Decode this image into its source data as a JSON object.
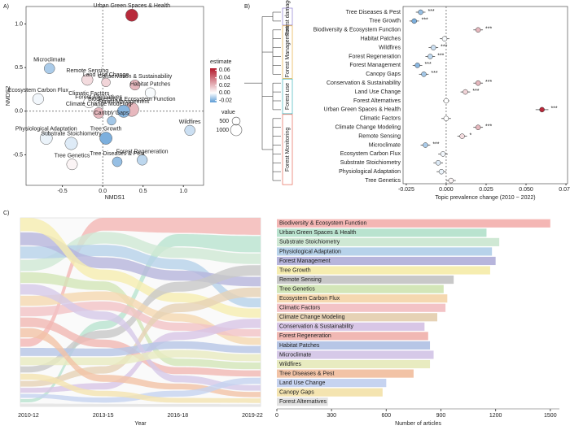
{
  "panel_labels": [
    "A)",
    "B)",
    "C)"
  ],
  "chart_data": [
    {
      "type": "scatter",
      "xlabel": "NMDS1",
      "ylabel": "NMDS2",
      "xlim": [
        -0.95,
        1.25
      ],
      "ylim": [
        -0.85,
        1.2
      ],
      "xticks": [
        -0.5,
        {
          "value": 0,
          "label": "0.0"
        },
        0.5,
        {
          "value": 1,
          "label": "1.0"
        }
      ],
      "yticks": [
        -0.5,
        {
          "value": 0,
          "label": "0.0"
        },
        0.5,
        {
          "value": 1,
          "label": "1.0"
        }
      ],
      "labels": [
        "Urban Green Spaces & Health",
        "Microclimate",
        "Remote Sensing",
        "Land Use Change",
        "Conservation & Sustainability",
        "Habitat Patches",
        "Ecosystem Carbon Flux",
        "Climatic Factors",
        "Forest Alternatives",
        "Biodiversity & Ecosystem Function",
        "Climate Change Modeling",
        "Forest Management",
        "Canopy Gaps",
        "Physiological Adaptation",
        "Substrate Stoichiometry",
        "Tree Growth",
        "Wildfires",
        "Forest Regeneration",
        "Tree Diseases & Pest",
        "Tree Genetics"
      ],
      "x": [
        0.36,
        -0.66,
        -0.19,
        0.04,
        0.4,
        0.59,
        -0.8,
        -0.17,
        -0.05,
        0.36,
        -0.05,
        0.26,
        0.11,
        -0.7,
        -0.39,
        0.04,
        1.08,
        0.49,
        0.18,
        -0.38
      ],
      "y": [
        1.1,
        0.49,
        0.36,
        0.33,
        0.3,
        0.21,
        0.14,
        0.1,
        0.09,
        0.02,
        -0.02,
        0,
        -0.11,
        -0.31,
        -0.37,
        -0.31,
        -0.22,
        -0.56,
        -0.58,
        -0.61
      ],
      "estimate": [
        0.06,
        -0.013,
        0.01,
        0.012,
        0.02,
        -0.001,
        -0.002,
        0,
        0,
        0.02,
        0.02,
        -0.018,
        -0.014,
        -0.003,
        -0.005,
        -0.02,
        -0.008,
        -0.01,
        -0.016,
        0.003
      ],
      "size": [
        1150,
        860,
        970,
        600,
        810,
        840,
        935,
        925,
        280,
        1500,
        880,
        1200,
        580,
        1180,
        1220,
        1170,
        840,
        830,
        750,
        915
      ],
      "color_title": "estimate",
      "color_lim": [
        -0.025,
        0.065
      ],
      "colors": [
        "#5b9bd5",
        "#ffffff",
        "#b2182b"
      ],
      "color_ticks": [
        0.06,
        0.04,
        0.02,
        {
          "value": 0,
          "label": "0.00"
        },
        -0.02
      ],
      "size_title": "value",
      "size_ticks": [
        500,
        1000
      ]
    },
    {
      "type": "dot",
      "xlabel": "Topic prevalence change (2010 ~ 2022)",
      "xlim": [
        -0.027,
        0.076
      ],
      "xticks": [
        -0.025,
        {
          "value": 0,
          "label": "0.000"
        },
        0.025,
        {
          "value": 0.05,
          "label": "0.050"
        },
        0.075
      ],
      "groups": [
        {
          "name": "Forest damage",
          "color": "#7b68c6",
          "categories": [
            "Tree Diseases & Pest",
            "Tree Growth"
          ],
          "values": [
            -0.016,
            -0.02
          ],
          "errors": [
            0.003,
            0.003
          ],
          "stars": [
            "***",
            "***"
          ]
        },
        {
          "name": "Forest Management",
          "color": "#e0a020",
          "categories": [
            "Biodiversity & Ecosystem Function",
            "Habitat Patches",
            "Wildfires",
            "Forest Regeneration",
            "Forest Management",
            "Canopy Gaps"
          ],
          "values": [
            0.02,
            -0.001,
            -0.008,
            -0.01,
            -0.018,
            -0.014
          ],
          "errors": [
            0.003,
            0.003,
            0.003,
            0.003,
            0.003,
            0.003
          ],
          "stars": [
            "***",
            null,
            "***",
            "***",
            "***",
            "***"
          ]
        },
        {
          "name": "Forest use",
          "color": "#20a8b0",
          "categories": [
            "Conservation & Sustainability",
            "Land Use Change",
            "Forest Alternatives",
            "Urban Green Spaces & Health"
          ],
          "values": [
            0.02,
            0.012,
            0,
            0.06
          ],
          "errors": [
            0.003,
            0.003,
            0.002,
            0.004
          ],
          "stars": [
            "***",
            "***",
            null,
            "***"
          ]
        },
        {
          "name": "Forest Monitoring",
          "color": "#e0503c",
          "categories": [
            "Climatic Factors",
            "Climate Change Modeling",
            "Remote Sensing",
            "Microclimate",
            "Ecosystem Carbon Flux",
            "Substrate Stoichiometry",
            "Physiological Adaptation",
            "Tree Genetics"
          ],
          "values": [
            0,
            0.02,
            0.01,
            -0.013,
            -0.002,
            -0.005,
            -0.003,
            0.003
          ],
          "errors": [
            0.003,
            0.003,
            0.003,
            0.003,
            0.003,
            0.003,
            0.003,
            0.003
          ],
          "stars": [
            null,
            "***",
            "*",
            "***",
            null,
            null,
            null,
            null
          ]
        }
      ]
    },
    {
      "type": "alluvial",
      "xlabel": "Year",
      "categories": [
        "2010-12",
        "2013-15",
        "2016-18",
        "2019-22"
      ],
      "series": [
        {
          "color": "#f4b6b4",
          "values": [
            200,
            350,
            430,
            520
          ]
        },
        {
          "color": "#b9e3cf",
          "values": [
            80,
            220,
            350,
            500
          ]
        },
        {
          "color": "#cfe8d4",
          "values": [
            280,
            320,
            300,
            320
          ]
        },
        {
          "color": "#b7d2ea",
          "values": [
            300,
            310,
            290,
            280
          ]
        },
        {
          "color": "#b7b5dc",
          "values": [
            320,
            300,
            290,
            290
          ]
        },
        {
          "color": "#f6edb0",
          "values": [
            330,
            290,
            270,
            280
          ]
        },
        {
          "color": "#c8c8c8",
          "values": [
            150,
            220,
            280,
            320
          ]
        },
        {
          "color": "#d3e6b8",
          "values": [
            260,
            240,
            210,
            205
          ]
        },
        {
          "color": "#f5d8b0",
          "values": [
            250,
            240,
            230,
            215
          ]
        },
        {
          "color": "#f3c3c6",
          "values": [
            230,
            240,
            230,
            225
          ]
        },
        {
          "color": "#e6d2b5",
          "values": [
            140,
            200,
            250,
            290
          ]
        },
        {
          "color": "#d8c6e6",
          "values": [
            120,
            180,
            230,
            280
          ]
        },
        {
          "color": "#f1b8b3",
          "values": [
            230,
            210,
            200,
            190
          ]
        },
        {
          "color": "#b7c6e6",
          "values": [
            200,
            210,
            215,
            215
          ]
        },
        {
          "color": "#d6c9e8",
          "values": [
            260,
            230,
            200,
            170
          ]
        },
        {
          "color": "#e8ebc0",
          "values": [
            200,
            210,
            215,
            215
          ]
        },
        {
          "color": "#f2c3a6",
          "values": [
            230,
            190,
            170,
            160
          ]
        },
        {
          "color": "#c6d3f0",
          "values": [
            100,
            140,
            170,
            190
          ]
        },
        {
          "color": "#f4e4b0",
          "values": [
            150,
            150,
            140,
            140
          ]
        },
        {
          "color": "#e2e2e2",
          "values": [
            70,
            70,
            70,
            70
          ]
        }
      ]
    },
    {
      "type": "barh",
      "xlabel": "Number of articles",
      "xlim": [
        0,
        1550
      ],
      "xticks": [
        0,
        300,
        600,
        900,
        1200,
        1500
      ],
      "categories": [
        "Biodiversity & Ecosystem Function",
        "Urban Green Spaces & Health",
        "Substrate Stoichiometry",
        "Physiological Adaptation",
        "Forest Management",
        "Tree Growth",
        "Remote Sensing",
        "Tree Genetics",
        "Ecosystem Carbon Flux",
        "Climatic Factors",
        "Climate Change Modeling",
        "Conservation & Sustainability",
        "Forest Regeneration",
        "Habitat Patches",
        "Microclimate",
        "Wildfires",
        "Tree Diseases & Pest",
        "Land Use Change",
        "Canopy Gaps",
        "Forest Alternatives"
      ],
      "values": [
        1500,
        1150,
        1220,
        1180,
        1200,
        1170,
        970,
        915,
        935,
        925,
        880,
        810,
        830,
        840,
        860,
        840,
        750,
        600,
        580,
        280
      ],
      "colors": [
        "#f4b6b4",
        "#b9e3cf",
        "#cfe8d4",
        "#b7d2ea",
        "#b7b5dc",
        "#f6edb0",
        "#c8c8c8",
        "#d3e6b8",
        "#f5d8b0",
        "#f3c3c6",
        "#e6d2b5",
        "#d8c6e6",
        "#f1b8b3",
        "#b7c6e6",
        "#d6c9e8",
        "#e8ebc0",
        "#f2c3a6",
        "#c6d3f0",
        "#f4e4b0",
        "#e2e2e2"
      ]
    }
  ]
}
